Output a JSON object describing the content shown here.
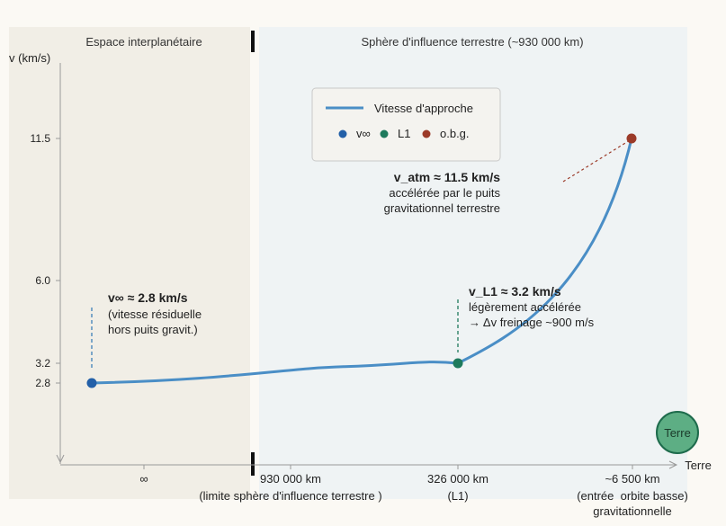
{
  "chart_data": {
    "type": "line",
    "ylabel": "v (km/s)",
    "xlabel": "Terre",
    "regions": {
      "left": "Espace interplanétaire",
      "right": "Sphère d'influence terrestre (~930 000 km)"
    },
    "y_ticks": [
      {
        "value": 2.8,
        "label": "2.8"
      },
      {
        "value": 3.2,
        "label": "3.2"
      },
      {
        "value": 6.0,
        "label": "6.0"
      },
      {
        "value": 11.5,
        "label": "11.5"
      }
    ],
    "x_ticks": [
      {
        "key": "inf",
        "label": "∞",
        "sub": ""
      },
      {
        "key": "soi",
        "label": "930 000 km",
        "sub": "(limite sphère d'influence terrestre )"
      },
      {
        "key": "l1",
        "label": "326 000 km",
        "sub": "(L1)"
      },
      {
        "key": "leo",
        "label": "~6 500 km",
        "sub": "(entrée  orbite basse)"
      }
    ],
    "x_tick_extra": "gravitationnelle",
    "series": [
      {
        "name": "Vitesse d'approche",
        "color": "#4a8ec6",
        "points": [
          {
            "x": "∞",
            "y": 2.8
          },
          {
            "x": "930 000 km",
            "y": 2.95
          },
          {
            "x": "326 000 km",
            "y": 3.2
          },
          {
            "x": "~6 500 km",
            "y": 11.5
          }
        ]
      }
    ],
    "markers": [
      {
        "key": "vinf",
        "label": "v∞",
        "color": "#2360a8",
        "x": "∞",
        "y": 2.8
      },
      {
        "key": "l1",
        "label": "L1",
        "color": "#1e7a5c",
        "x": "326 000 km",
        "y": 3.2
      },
      {
        "key": "obg",
        "label": "o.b.g.",
        "color": "#9b3a28",
        "x": "~6 500 km",
        "y": 11.5
      }
    ],
    "annotations": {
      "vinf": {
        "title": "v∞ ≈ 2.8 km/s",
        "lines": [
          "(vitesse résiduelle",
          "hors puits gravit.)"
        ]
      },
      "l1": {
        "title": "v_L1 ≈ 3.2 km/s",
        "lines": [
          "légèrement accélérée",
          "→ Δv freinage ~900 m/s"
        ]
      },
      "atm": {
        "title": "v_atm ≈ 11.5 km/s",
        "lines": [
          "accélérée par le puits",
          "gravitationnel terrestre"
        ]
      }
    },
    "earth_label": "Terre",
    "legend_placement": "top-center"
  },
  "colors": {
    "curve": "#4a8ec6",
    "left_bg": "#f1eee6",
    "right_bg": "#eff3f4",
    "earth_fill": "#5dae84",
    "earth_stroke": "#1e6b4c"
  }
}
